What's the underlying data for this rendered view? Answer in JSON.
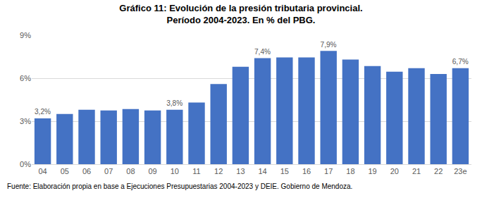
{
  "chart_data": {
    "type": "bar",
    "title": "Gráfico 11: Evolución de la presión tributaria provincial.",
    "subtitle": "Período 2004-2023. En % del PBG.",
    "source": "Fuente: Elaboración propia en base a Ejecuciones Presupuestarias 2004-2023 y DEIE. Gobierno de Mendoza.",
    "categories": [
      "04",
      "05",
      "06",
      "07",
      "08",
      "09",
      "10",
      "11",
      "12",
      "13",
      "14",
      "15",
      "16",
      "17",
      "18",
      "19",
      "20",
      "21",
      "22",
      "23e"
    ],
    "values": [
      3.2,
      3.5,
      3.8,
      3.75,
      3.85,
      3.75,
      3.8,
      4.3,
      5.6,
      6.8,
      7.4,
      7.45,
      7.45,
      7.9,
      7.3,
      6.85,
      6.45,
      6.7,
      6.3,
      6.7
    ],
    "value_labels": [
      "3,2%",
      null,
      null,
      null,
      null,
      null,
      "3,8%",
      null,
      null,
      null,
      "7,4%",
      null,
      null,
      "7,9%",
      null,
      null,
      null,
      null,
      null,
      "6,7%"
    ],
    "data_labels": true,
    "color": "#4472c4",
    "ylim": [
      0,
      9
    ],
    "yticks": [
      {
        "value": 0,
        "label": "0%"
      },
      {
        "value": 3,
        "label": "3%"
      },
      {
        "value": 6,
        "label": "6%"
      },
      {
        "value": 9,
        "label": "9%"
      }
    ],
    "grid": true
  }
}
